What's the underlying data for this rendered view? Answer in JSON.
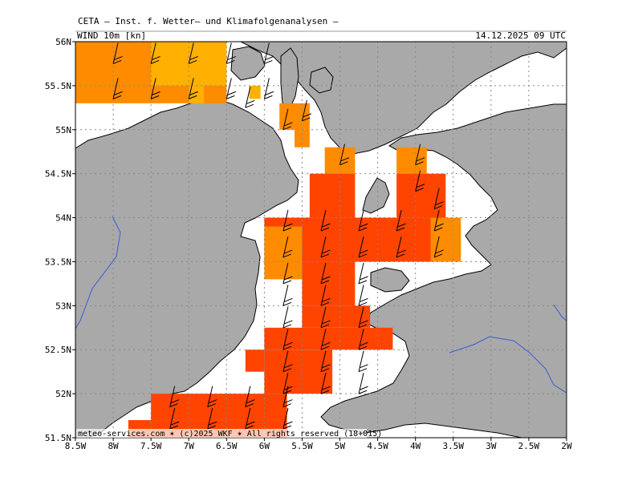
{
  "header": {
    "title": "CETA – Inst. f. Wetter– und Klimafolgenanalysen –",
    "variable": "WIND 10m [kn]",
    "datetime": "14.12.2025 09 UTC"
  },
  "footer": {
    "credit": "meteo-services.com ✶ (c)2025 WKF ✶ All rights reserved (18+015)"
  },
  "axes": {
    "lon_ticks": [
      "8.5W",
      "8W",
      "7.5W",
      "7W",
      "6.5W",
      "6W",
      "5.5W",
      "5W",
      "4.5W",
      "4W",
      "3.5W",
      "3W",
      "2.5W",
      "2W"
    ],
    "lat_ticks": [
      "56N",
      "55.5N",
      "55N",
      "54.5N",
      "54N",
      "53.5N",
      "53N",
      "52.5N",
      "52N",
      "51.5N"
    ],
    "lon_range": [
      -8.5,
      -2.0
    ],
    "lat_range": [
      51.5,
      56.0
    ]
  },
  "colors": {
    "land": "#a9a9a9",
    "sea": "#ffffff",
    "orange_light": "#ffb000",
    "orange": "#ff8c00",
    "orange_red": "#ff4400",
    "river": "#3b5bdb"
  }
}
